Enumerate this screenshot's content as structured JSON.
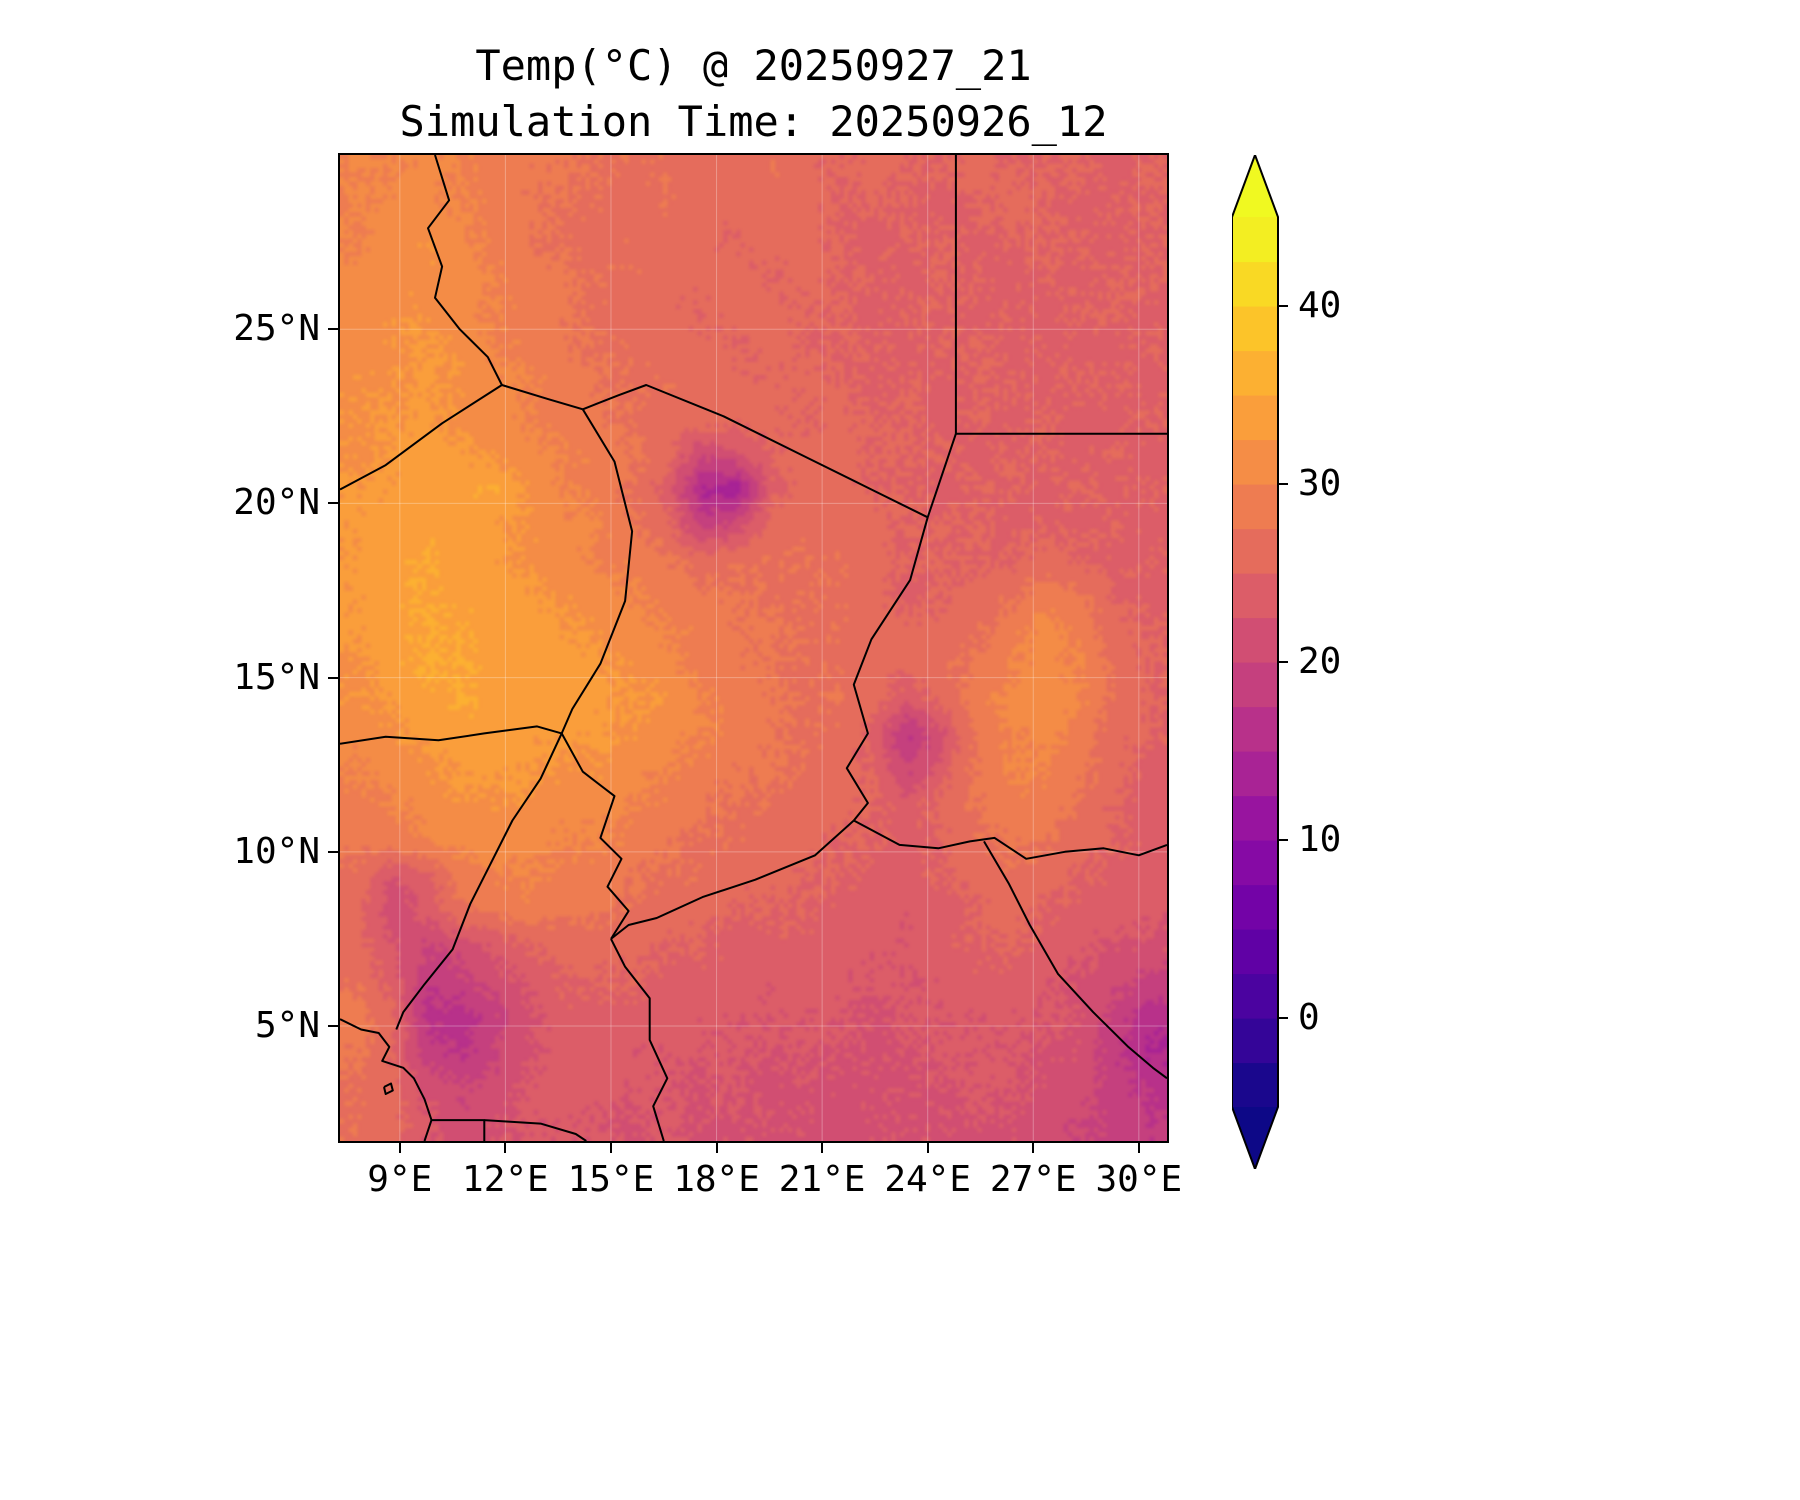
{
  "title": {
    "line1": "Temp(°C) @ 20250927_21",
    "line2": "Simulation Time: 20250926_12"
  },
  "chart_data": {
    "type": "heatmap",
    "title": "Temp(°C) @ 20250927_21",
    "subtitle": "Simulation Time: 20250926_12",
    "units": "°C",
    "x_axis": {
      "ticks": [
        9,
        12,
        15,
        18,
        21,
        24,
        27,
        30
      ],
      "tick_labels": [
        "9°E",
        "12°E",
        "15°E",
        "18°E",
        "21°E",
        "24°E",
        "27°E",
        "30°E"
      ],
      "range": [
        7.3,
        30.8
      ]
    },
    "y_axis": {
      "ticks": [
        5,
        10,
        15,
        20,
        25
      ],
      "tick_labels": [
        "5°N",
        "10°N",
        "15°N",
        "20°N",
        "25°N"
      ],
      "range": [
        1.7,
        30.0
      ]
    },
    "colorbar": {
      "vmin": -5,
      "vmax": 45,
      "band_step": 2.5,
      "ticks": [
        0,
        10,
        20,
        30,
        40
      ],
      "tick_labels": [
        "0",
        "10",
        "20",
        "30",
        "40"
      ],
      "extend": "both",
      "colormap": "plasma",
      "colormap_stops": [
        [
          0.0,
          "#0d0887"
        ],
        [
          0.1,
          "#41049d"
        ],
        [
          0.2,
          "#6a00a8"
        ],
        [
          0.3,
          "#8f0da4"
        ],
        [
          0.4,
          "#b12a90"
        ],
        [
          0.5,
          "#cc4778"
        ],
        [
          0.6,
          "#e16462"
        ],
        [
          0.7,
          "#f2844b"
        ],
        [
          0.8,
          "#fca636"
        ],
        [
          0.9,
          "#fcce25"
        ],
        [
          1.0,
          "#f0f921"
        ]
      ]
    },
    "temperature_grid": {
      "comment": "Estimated 2m temperature (deg C) read from the filled contours; rows north-to-south",
      "lon_range": [
        7.3,
        30.8
      ],
      "lat_range": [
        30.0,
        1.7
      ],
      "ncols": 24,
      "nrows": 28,
      "values": [
        [
          30,
          30,
          31,
          30,
          29,
          28,
          28,
          27,
          27,
          27,
          26,
          26,
          27,
          26,
          25,
          26,
          25,
          25,
          26,
          25,
          25,
          25,
          24,
          25
        ],
        [
          30,
          31,
          31,
          30,
          29,
          28,
          27,
          27,
          26,
          27,
          26,
          26,
          26,
          26,
          25,
          25,
          25,
          24,
          25,
          26,
          25,
          24,
          25,
          25
        ],
        [
          30,
          31,
          32,
          31,
          29,
          28,
          27,
          26,
          27,
          26,
          26,
          25,
          26,
          26,
          25,
          24,
          25,
          25,
          24,
          25,
          25,
          25,
          24,
          25
        ],
        [
          31,
          31,
          32,
          31,
          30,
          29,
          28,
          27,
          27,
          26,
          26,
          26,
          25,
          26,
          25,
          25,
          24,
          25,
          25,
          24,
          25,
          24,
          25,
          25
        ],
        [
          31,
          32,
          32,
          31,
          30,
          29,
          28,
          27,
          26,
          26,
          25,
          26,
          26,
          25,
          25,
          24,
          25,
          25,
          24,
          25,
          24,
          25,
          25,
          24
        ],
        [
          31,
          32,
          33,
          32,
          30,
          29,
          28,
          27,
          27,
          26,
          26,
          25,
          26,
          25,
          25,
          25,
          24,
          25,
          25,
          24,
          25,
          24,
          24,
          25
        ],
        [
          32,
          32,
          33,
          32,
          31,
          30,
          29,
          28,
          27,
          27,
          26,
          26,
          25,
          26,
          25,
          24,
          25,
          24,
          25,
          25,
          24,
          25,
          25,
          24
        ],
        [
          32,
          33,
          33,
          32,
          31,
          30,
          29,
          28,
          27,
          26,
          27,
          26,
          26,
          25,
          26,
          25,
          25,
          24,
          25,
          24,
          25,
          24,
          24,
          25
        ],
        [
          32,
          33,
          34,
          33,
          32,
          31,
          30,
          29,
          28,
          26,
          20,
          22,
          25,
          26,
          26,
          25,
          25,
          25,
          24,
          25,
          25,
          24,
          25,
          24
        ],
        [
          33,
          33,
          34,
          34,
          35,
          32,
          30,
          29,
          27,
          24,
          15,
          13,
          24,
          26,
          26,
          25,
          25,
          24,
          25,
          25,
          24,
          25,
          24,
          25
        ],
        [
          33,
          34,
          34,
          34,
          33,
          32,
          31,
          30,
          28,
          26,
          19,
          21,
          26,
          27,
          26,
          26,
          25,
          25,
          25,
          24,
          25,
          24,
          25,
          24
        ],
        [
          33,
          34,
          35,
          34,
          33,
          32,
          31,
          30,
          29,
          28,
          26,
          27,
          27,
          27,
          27,
          26,
          25,
          25,
          25,
          25,
          26,
          25,
          24,
          25
        ],
        [
          33,
          34,
          35,
          34,
          34,
          33,
          32,
          31,
          30,
          29,
          28,
          28,
          27,
          27,
          27,
          26,
          24,
          25,
          26,
          27,
          29,
          28,
          25,
          24
        ],
        [
          33,
          34,
          35,
          35,
          34,
          34,
          33,
          32,
          31,
          30,
          29,
          28,
          28,
          27,
          27,
          26,
          26,
          26,
          27,
          29,
          31,
          29,
          26,
          25
        ],
        [
          32,
          34,
          35,
          35,
          34,
          34,
          34,
          33,
          32,
          31,
          29,
          28,
          28,
          27,
          27,
          26,
          26,
          27,
          28,
          30,
          31,
          30,
          27,
          25
        ],
        [
          32,
          33,
          34,
          35,
          34,
          34,
          34,
          33,
          33,
          32,
          30,
          29,
          28,
          27,
          27,
          26,
          23,
          26,
          29,
          31,
          32,
          30,
          27,
          25
        ],
        [
          31,
          32,
          33,
          34,
          34,
          33,
          33,
          33,
          32,
          31,
          30,
          29,
          28,
          27,
          27,
          24,
          17,
          22,
          28,
          30,
          31,
          29,
          26,
          25
        ],
        [
          30,
          31,
          32,
          33,
          33,
          33,
          32,
          32,
          31,
          30,
          29,
          28,
          28,
          27,
          26,
          25,
          20,
          24,
          28,
          30,
          30,
          28,
          26,
          24
        ],
        [
          29,
          30,
          31,
          32,
          32,
          32,
          31,
          31,
          30,
          29,
          28,
          27,
          27,
          26,
          26,
          25,
          24,
          26,
          28,
          29,
          29,
          27,
          25,
          24
        ],
        [
          28,
          29,
          30,
          31,
          31,
          31,
          30,
          30,
          29,
          28,
          27,
          27,
          26,
          26,
          25,
          25,
          24,
          25,
          27,
          28,
          28,
          26,
          25,
          24
        ],
        [
          27,
          22,
          24,
          29,
          30,
          30,
          29,
          29,
          28,
          27,
          27,
          26,
          26,
          25,
          25,
          24,
          24,
          25,
          26,
          27,
          26,
          25,
          24,
          24
        ],
        [
          26,
          21,
          23,
          27,
          28,
          29,
          28,
          28,
          27,
          26,
          26,
          25,
          25,
          25,
          24,
          24,
          23,
          24,
          25,
          26,
          25,
          24,
          24,
          23
        ],
        [
          26,
          23,
          20,
          21,
          23,
          25,
          26,
          26,
          26,
          25,
          25,
          24,
          24,
          24,
          24,
          23,
          23,
          24,
          25,
          25,
          24,
          23,
          22,
          22
        ],
        [
          27,
          24,
          18,
          19,
          21,
          23,
          25,
          25,
          25,
          24,
          24,
          24,
          23,
          24,
          23,
          23,
          23,
          23,
          24,
          24,
          23,
          22,
          21,
          19
        ],
        [
          29,
          26,
          17,
          16,
          19,
          22,
          24,
          24,
          24,
          24,
          23,
          23,
          23,
          23,
          23,
          22,
          23,
          23,
          23,
          23,
          23,
          22,
          19,
          16
        ],
        [
          28,
          25,
          19,
          17,
          20,
          22,
          24,
          24,
          23,
          23,
          23,
          23,
          22,
          23,
          22,
          22,
          22,
          23,
          23,
          23,
          22,
          22,
          18,
          15
        ],
        [
          27,
          26,
          22,
          20,
          21,
          23,
          24,
          23,
          23,
          23,
          22,
          23,
          22,
          22,
          22,
          22,
          22,
          22,
          23,
          23,
          22,
          21,
          19,
          17
        ],
        [
          27,
          26,
          23,
          21,
          22,
          23,
          23,
          23,
          22,
          23,
          22,
          22,
          22,
          22,
          21,
          22,
          22,
          22,
          22,
          22,
          21,
          20,
          19,
          18
        ]
      ]
    },
    "borders": {
      "algeria_niger": [
        [
          7.3,
          20.4
        ],
        [
          8.6,
          21.1
        ],
        [
          10.2,
          22.3
        ],
        [
          11.9,
          23.4
        ]
      ],
      "algeria_libya": [
        [
          10.0,
          30.0
        ],
        [
          10.4,
          28.7
        ],
        [
          9.8,
          27.9
        ],
        [
          10.2,
          26.8
        ],
        [
          10.0,
          25.9
        ],
        [
          10.7,
          25.0
        ],
        [
          11.5,
          24.2
        ],
        [
          11.9,
          23.4
        ]
      ],
      "niger_libya": [
        [
          11.9,
          23.4
        ],
        [
          13.2,
          23.0
        ],
        [
          14.2,
          22.7
        ]
      ],
      "libya_chad": [
        [
          14.2,
          22.7
        ],
        [
          15.2,
          23.1
        ],
        [
          16.0,
          23.4
        ],
        [
          18.2,
          22.5
        ],
        [
          20.6,
          21.3
        ],
        [
          22.4,
          20.4
        ],
        [
          24.0,
          19.6
        ]
      ],
      "niger_chad": [
        [
          14.2,
          22.7
        ],
        [
          15.1,
          21.2
        ],
        [
          15.6,
          19.2
        ],
        [
          15.4,
          17.2
        ],
        [
          14.7,
          15.4
        ],
        [
          13.9,
          14.1
        ],
        [
          13.6,
          13.4
        ]
      ],
      "libya_egypt": [
        [
          24.8,
          30.0
        ],
        [
          24.8,
          22.0
        ]
      ],
      "egypt_sudan": [
        [
          24.8,
          22.0
        ],
        [
          30.8,
          22.0
        ]
      ],
      "libya_sudan": [
        [
          24.8,
          22.0
        ],
        [
          24.0,
          19.6
        ]
      ],
      "chad_sudan": [
        [
          24.0,
          19.6
        ],
        [
          23.5,
          17.8
        ],
        [
          22.4,
          16.1
        ],
        [
          21.9,
          14.8
        ],
        [
          22.3,
          13.4
        ],
        [
          21.7,
          12.4
        ],
        [
          22.3,
          11.4
        ],
        [
          21.9,
          10.9
        ]
      ],
      "chad_car": [
        [
          21.9,
          10.9
        ],
        [
          20.8,
          9.9
        ],
        [
          19.1,
          9.2
        ],
        [
          17.6,
          8.7
        ],
        [
          16.3,
          8.1
        ],
        [
          15.5,
          7.9
        ],
        [
          15.0,
          7.5
        ]
      ],
      "sudan_south_sudan": [
        [
          21.9,
          10.9
        ],
        [
          23.2,
          10.2
        ],
        [
          24.3,
          10.1
        ],
        [
          25.2,
          10.3
        ],
        [
          25.9,
          10.4
        ],
        [
          26.8,
          9.8
        ],
        [
          27.9,
          10.0
        ],
        [
          29.0,
          10.1
        ],
        [
          30.0,
          9.9
        ],
        [
          30.8,
          10.2
        ]
      ],
      "car_south_sudan": [
        [
          25.6,
          10.3
        ],
        [
          26.3,
          9.1
        ],
        [
          26.9,
          7.9
        ],
        [
          27.7,
          6.5
        ],
        [
          28.7,
          5.4
        ],
        [
          29.7,
          4.4
        ],
        [
          30.4,
          3.8
        ],
        [
          30.8,
          3.5
        ]
      ],
      "niger_nigeria": [
        [
          7.3,
          13.1
        ],
        [
          8.6,
          13.3
        ],
        [
          10.1,
          13.2
        ],
        [
          11.4,
          13.4
        ],
        [
          12.9,
          13.6
        ],
        [
          13.6,
          13.4
        ]
      ],
      "nigeria_cameroon": [
        [
          13.6,
          13.4
        ],
        [
          13.0,
          12.1
        ],
        [
          12.2,
          10.9
        ],
        [
          11.6,
          9.7
        ],
        [
          11.0,
          8.5
        ],
        [
          10.5,
          7.2
        ],
        [
          9.7,
          6.2
        ],
        [
          9.1,
          5.4
        ],
        [
          8.9,
          4.9
        ]
      ],
      "chad_cameroon": [
        [
          13.6,
          13.4
        ],
        [
          14.2,
          12.3
        ],
        [
          15.1,
          11.6
        ],
        [
          14.7,
          10.4
        ],
        [
          15.3,
          9.8
        ],
        [
          14.9,
          9.0
        ],
        [
          15.5,
          8.3
        ],
        [
          15.0,
          7.5
        ]
      ],
      "cameroon_car": [
        [
          15.0,
          7.5
        ],
        [
          15.4,
          6.7
        ],
        [
          16.1,
          5.8
        ],
        [
          16.1,
          4.6
        ],
        [
          16.6,
          3.5
        ],
        [
          16.2,
          2.7
        ],
        [
          16.5,
          1.7
        ]
      ],
      "atlantic_coastline": [
        [
          7.3,
          5.2
        ],
        [
          7.9,
          4.9
        ],
        [
          8.4,
          4.8
        ],
        [
          8.7,
          4.4
        ],
        [
          8.5,
          4.0
        ],
        [
          9.1,
          3.8
        ],
        [
          9.4,
          3.5
        ],
        [
          9.7,
          2.9
        ],
        [
          9.9,
          2.3
        ],
        [
          9.7,
          1.7
        ]
      ],
      "eq_guinea": [
        [
          9.9,
          2.3
        ],
        [
          11.4,
          2.3
        ],
        [
          11.4,
          1.7
        ]
      ],
      "gabon_congo": [
        [
          11.4,
          2.3
        ],
        [
          13.0,
          2.2
        ],
        [
          14.0,
          1.9
        ],
        [
          14.3,
          1.7
        ]
      ],
      "bioko_island": [
        [
          8.55,
          3.25
        ],
        [
          8.75,
          3.35
        ],
        [
          8.8,
          3.15
        ],
        [
          8.6,
          3.05
        ],
        [
          8.55,
          3.25
        ]
      ]
    }
  }
}
